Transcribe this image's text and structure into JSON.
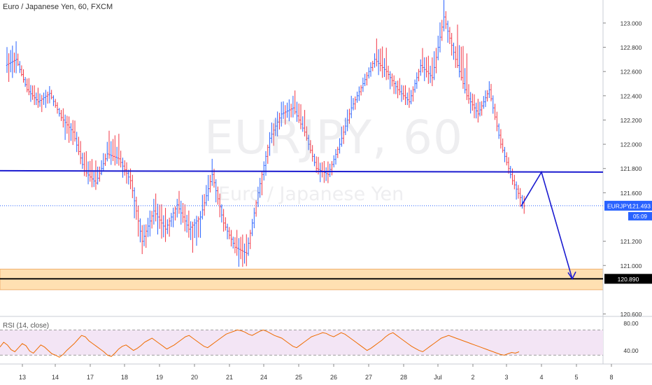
{
  "header": {
    "title": "Euro / Japanese Yen, 60, FXCM"
  },
  "watermark": {
    "symbol": "EURJPY, 60",
    "name": "Euro / Japanese Yen"
  },
  "indicator": {
    "label": "RSI (14, close)"
  },
  "price_badge": {
    "symbol": "EURJPY",
    "price": "121.493",
    "countdown": "05:09"
  },
  "support_badge": {
    "price": "120.890"
  },
  "colors": {
    "up": "#2962ff",
    "down": "#f23645",
    "resistance": "#1b1bd0",
    "support_zone": "#ffe0b2",
    "support_line": "#000000",
    "rsi_line": "#ef6c00",
    "rsi_band": "#f3e5f5"
  },
  "chart_data": [
    {
      "type": "candlestick",
      "title": "Euro / Japanese Yen, 60, FXCM",
      "x_tick_labels": [
        "13",
        "14",
        "17",
        "18",
        "19",
        "20",
        "21",
        "24",
        "25",
        "26",
        "27",
        "28",
        "Jul",
        "2",
        "3",
        "4",
        "5",
        "8"
      ],
      "y_tick_labels": [
        "123.000",
        "122.800",
        "122.600",
        "122.400",
        "122.200",
        "122.000",
        "121.800",
        "121.600",
        "121.200",
        "121.000",
        "120.600"
      ],
      "ylim": [
        120.58,
        123.19
      ],
      "current_price": 121.493,
      "resistance_level": 121.77,
      "support_level": 120.89,
      "support_zone": [
        120.8,
        120.97
      ],
      "projection": [
        {
          "label": "",
          "value": 121.49
        },
        {
          "label": "4",
          "value": 121.77
        },
        {
          "label": "5",
          "value": 120.89
        }
      ],
      "series": [
        {
          "values": [
            {
              "x": "13",
              "o": 122.65,
              "h": 122.85,
              "l": 122.5,
              "c": 122.7
            },
            {
              "x": "13",
              "o": 122.7,
              "h": 122.75,
              "l": 122.42,
              "c": 122.45
            },
            {
              "x": "13",
              "o": 122.45,
              "h": 122.55,
              "l": 122.28,
              "c": 122.35
            },
            {
              "x": "14",
              "o": 122.35,
              "h": 122.48,
              "l": 122.25,
              "c": 122.42
            },
            {
              "x": "14",
              "o": 122.42,
              "h": 122.45,
              "l": 122.18,
              "c": 122.22
            },
            {
              "x": "14",
              "o": 122.22,
              "h": 122.3,
              "l": 121.95,
              "c": 122.1
            },
            {
              "x": "17",
              "o": 122.1,
              "h": 122.2,
              "l": 121.72,
              "c": 121.78
            },
            {
              "x": "17",
              "o": 121.78,
              "h": 121.95,
              "l": 121.6,
              "c": 121.68
            },
            {
              "x": "17",
              "o": 121.68,
              "h": 122.02,
              "l": 121.65,
              "c": 121.92
            },
            {
              "x": "18",
              "o": 121.92,
              "h": 122.12,
              "l": 121.8,
              "c": 121.88
            },
            {
              "x": "18",
              "o": 121.88,
              "h": 121.95,
              "l": 121.6,
              "c": 121.7
            },
            {
              "x": "18",
              "o": 121.7,
              "h": 121.75,
              "l": 121.05,
              "c": 121.2
            },
            {
              "x": "19",
              "o": 121.2,
              "h": 121.55,
              "l": 121.1,
              "c": 121.45
            },
            {
              "x": "19",
              "o": 121.45,
              "h": 121.6,
              "l": 121.15,
              "c": 121.3
            },
            {
              "x": "19",
              "o": 121.3,
              "h": 121.55,
              "l": 121.2,
              "c": 121.5
            },
            {
              "x": "20",
              "o": 121.5,
              "h": 121.62,
              "l": 121.2,
              "c": 121.3
            },
            {
              "x": "20",
              "o": 121.3,
              "h": 121.45,
              "l": 121.08,
              "c": 121.4
            },
            {
              "x": "20",
              "o": 121.4,
              "h": 121.88,
              "l": 121.35,
              "c": 121.75
            },
            {
              "x": "21",
              "o": 121.75,
              "h": 121.8,
              "l": 121.25,
              "c": 121.35
            },
            {
              "x": "21",
              "o": 121.35,
              "h": 121.4,
              "l": 121.08,
              "c": 121.15
            },
            {
              "x": "21",
              "o": 121.15,
              "h": 121.3,
              "l": 120.95,
              "c": 121.1
            },
            {
              "x": "24",
              "o": 121.1,
              "h": 121.65,
              "l": 121.05,
              "c": 121.6
            },
            {
              "x": "24",
              "o": 121.6,
              "h": 122.1,
              "l": 121.5,
              "c": 122.05
            },
            {
              "x": "24",
              "o": 122.05,
              "h": 122.35,
              "l": 121.95,
              "c": 122.25
            },
            {
              "x": "25",
              "o": 122.25,
              "h": 122.4,
              "l": 122.15,
              "c": 122.3
            },
            {
              "x": "25",
              "o": 122.3,
              "h": 122.45,
              "l": 122.05,
              "c": 122.1
            },
            {
              "x": "25",
              "o": 122.1,
              "h": 122.15,
              "l": 121.75,
              "c": 121.8
            },
            {
              "x": "26",
              "o": 121.8,
              "h": 121.9,
              "l": 121.65,
              "c": 121.75
            },
            {
              "x": "26",
              "o": 121.75,
              "h": 122.05,
              "l": 121.7,
              "c": 122.0
            },
            {
              "x": "26",
              "o": 122.0,
              "h": 122.4,
              "l": 121.95,
              "c": 122.3
            },
            {
              "x": "27",
              "o": 122.3,
              "h": 122.55,
              "l": 122.25,
              "c": 122.5
            },
            {
              "x": "27",
              "o": 122.5,
              "h": 122.75,
              "l": 122.45,
              "c": 122.7
            },
            {
              "x": "27",
              "o": 122.7,
              "h": 122.88,
              "l": 122.5,
              "c": 122.6
            },
            {
              "x": "28",
              "o": 122.6,
              "h": 122.65,
              "l": 122.35,
              "c": 122.45
            },
            {
              "x": "28",
              "o": 122.45,
              "h": 122.55,
              "l": 122.28,
              "c": 122.35
            },
            {
              "x": "28",
              "o": 122.35,
              "h": 122.7,
              "l": 122.3,
              "c": 122.65
            },
            {
              "x": "Jul",
              "o": 122.65,
              "h": 122.8,
              "l": 122.45,
              "c": 122.55
            },
            {
              "x": "Jul",
              "o": 122.55,
              "h": 123.19,
              "l": 122.5,
              "c": 123.05
            },
            {
              "x": "Jul",
              "o": 123.05,
              "h": 123.1,
              "l": 122.6,
              "c": 122.7
            },
            {
              "x": "2",
              "o": 122.7,
              "h": 123.0,
              "l": 122.35,
              "c": 122.4
            },
            {
              "x": "2",
              "o": 122.4,
              "h": 122.5,
              "l": 122.15,
              "c": 122.25
            },
            {
              "x": "2",
              "o": 122.25,
              "h": 122.52,
              "l": 122.2,
              "c": 122.45
            },
            {
              "x": "3",
              "o": 122.45,
              "h": 122.5,
              "l": 121.95,
              "c": 122.0
            },
            {
              "x": "3",
              "o": 122.0,
              "h": 122.05,
              "l": 121.65,
              "c": 121.7
            },
            {
              "x": "3",
              "o": 121.7,
              "h": 121.75,
              "l": 121.4,
              "c": 121.49
            }
          ]
        }
      ]
    },
    {
      "type": "line",
      "title": "RSI (14, close)",
      "y_tick_labels": [
        "80.00",
        "40.00"
      ],
      "ylim": [
        20,
        90
      ],
      "bands": [
        33,
        70
      ],
      "series": [
        {
          "values": [
            45,
            52,
            48,
            41,
            38,
            44,
            50,
            47,
            39,
            36,
            42,
            48,
            45,
            40,
            35,
            33,
            30,
            34,
            40,
            45,
            50,
            56,
            62,
            60,
            54,
            50,
            46,
            42,
            38,
            33,
            31,
            36,
            42,
            46,
            48,
            44,
            40,
            43,
            47,
            52,
            55,
            58,
            54,
            50,
            46,
            42,
            45,
            48,
            52,
            56,
            60,
            62,
            58,
            54,
            50,
            46,
            44,
            48,
            52,
            56,
            60,
            64,
            66,
            68,
            70,
            69,
            67,
            64,
            62,
            65,
            68,
            70,
            68,
            65,
            62,
            60,
            58,
            54,
            50,
            46,
            44,
            48,
            52,
            56,
            60,
            62,
            64,
            66,
            65,
            62,
            60,
            63,
            66,
            64,
            60,
            56,
            52,
            48,
            44,
            40,
            43,
            47,
            51,
            55,
            60,
            64,
            66,
            62,
            58,
            54,
            50,
            46,
            43,
            40,
            38,
            42,
            46,
            50,
            54,
            58,
            60,
            62,
            60,
            58,
            56,
            54,
            52,
            50,
            48,
            46,
            44,
            42,
            40,
            38,
            36,
            34,
            33,
            35,
            37,
            36,
            38
          ]
        }
      ]
    }
  ]
}
